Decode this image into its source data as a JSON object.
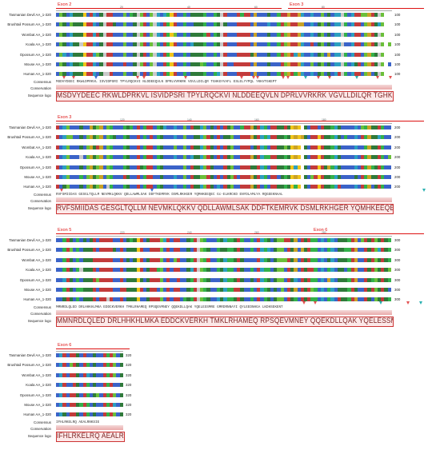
{
  "species": [
    "Tasmanian Devil AA_1-320",
    "Brushtail Possum AA_1-320",
    "Wombat AA_1-320",
    "Koala AA_1-320",
    "Opossum AA_1-320",
    "Mouse AA_1-320",
    "Human AA_1-320"
  ],
  "row_labels": {
    "consensus": "Consensus",
    "conservation": "Conservation",
    "sequence_logo": "Sequence logo"
  },
  "blocks": [
    {
      "end_numbers": [
        "100",
        "100",
        "100",
        "100",
        "100",
        "100",
        "100"
      ],
      "ruler_ticks": [
        "20",
        "40",
        "60",
        "80"
      ],
      "consensus": "MSDVYDEEC RKWLDPRKVL ISVIDPSRI TPYLRQCKVI NLDDEEQVLN DPRLVVRKRK VGVLLDILQR TGHKGYVAFL ESLELYYPQL YKKVTGKEPT",
      "logo": "MSDVYDEEC RKWLDPRKVL ISVIDPSRI TPYLRQCKVI NLDDEEQVLN DPRLVVRKRK VGVLLDILQR TGHKGYVAFL ESLELYYPQL YKKVTGKEPT",
      "exons": [
        {
          "label": "Exon 2"
        },
        {
          "label": "Exon 3"
        }
      ]
    },
    {
      "end_numbers": [
        "200",
        "200",
        "200",
        "200",
        "200",
        "200",
        "200"
      ],
      "ruler_ticks": [
        "120",
        "140",
        "160",
        "180"
      ],
      "consensus": "RVFSMIIDAS GESGLTQLLM NEVMKLQKKV QDLLAWMLSAK DDFTKEMRVK DSMLRKHGER YQMHKEEQEC Gc-ELKRCKD ENYDLAMLYA RQGEEKNAAL",
      "logo": "RVFSMIIDAS GESGLTQLLM NEVMKLQKKV QDLLAWMLSAK DDFTKEMRVK DSMLRKHGER YQMHKEEQEC Gc-ELKRCKD ENYDLAMLYA RQGEEKNAAL",
      "exons": [
        {
          "label": "Exon 3"
        }
      ]
    },
    {
      "end_numbers": [
        "300",
        "300",
        "300",
        "300",
        "300",
        "300",
        "300"
      ],
      "ruler_ticks": [
        "220",
        "240",
        "260",
        "280"
      ],
      "consensus": "MMNRDLQLED DRLHHKHLMKA EDDCKVERKH TMKLRHAMEQ RPSQEVMNEY QQEKDLLQAK YQELESSMRE GMRDRNNAYI QYLEEDNHGA LKDHSEKENT",
      "logo": "MMNRDLQLED DRLHHKHLMKA EDDCKVERKH TMKLRHAMEQ RPSQEVMNEY QQEKDLLQAK YQELESSMRE GMRDRNNAYI QYLEEDNHGA LKDHSEKENT",
      "exons": [
        {
          "label": "Exon 5"
        },
        {
          "label": "Exon 6"
        }
      ]
    },
    {
      "end_numbers": [
        "320",
        "320",
        "320",
        "320",
        "320",
        "320",
        "320"
      ],
      "ruler_ticks": [],
      "consensus": "IFHLRKELRQ AEALRNKSIE",
      "logo": "IFHLRKELRQ AEALRNKSIE",
      "exons": [
        {
          "label": "Exon 6"
        }
      ]
    }
  ],
  "palette": {
    "K": "#c23b3b",
    "R": "#c23b3b",
    "H": "#c23b3b",
    "D": "#2f7a3a",
    "E": "#2f7a3a",
    "N": "#33b14a",
    "Q": "#33b14a",
    "S": "#6bbf3a",
    "T": "#6bbf3a",
    "G": "#c9a227",
    "C": "#f0c419",
    "A": "#3b63c8",
    "V": "#3b63c8",
    "L": "#3b63c8",
    "I": "#3b63c8",
    "M": "#3b63c8",
    "F": "#2c9fc0",
    "Y": "#2c9fc0",
    "W": "#2c9fc0",
    "P": "#c9c9c9",
    "-": "#ffffff"
  }
}
